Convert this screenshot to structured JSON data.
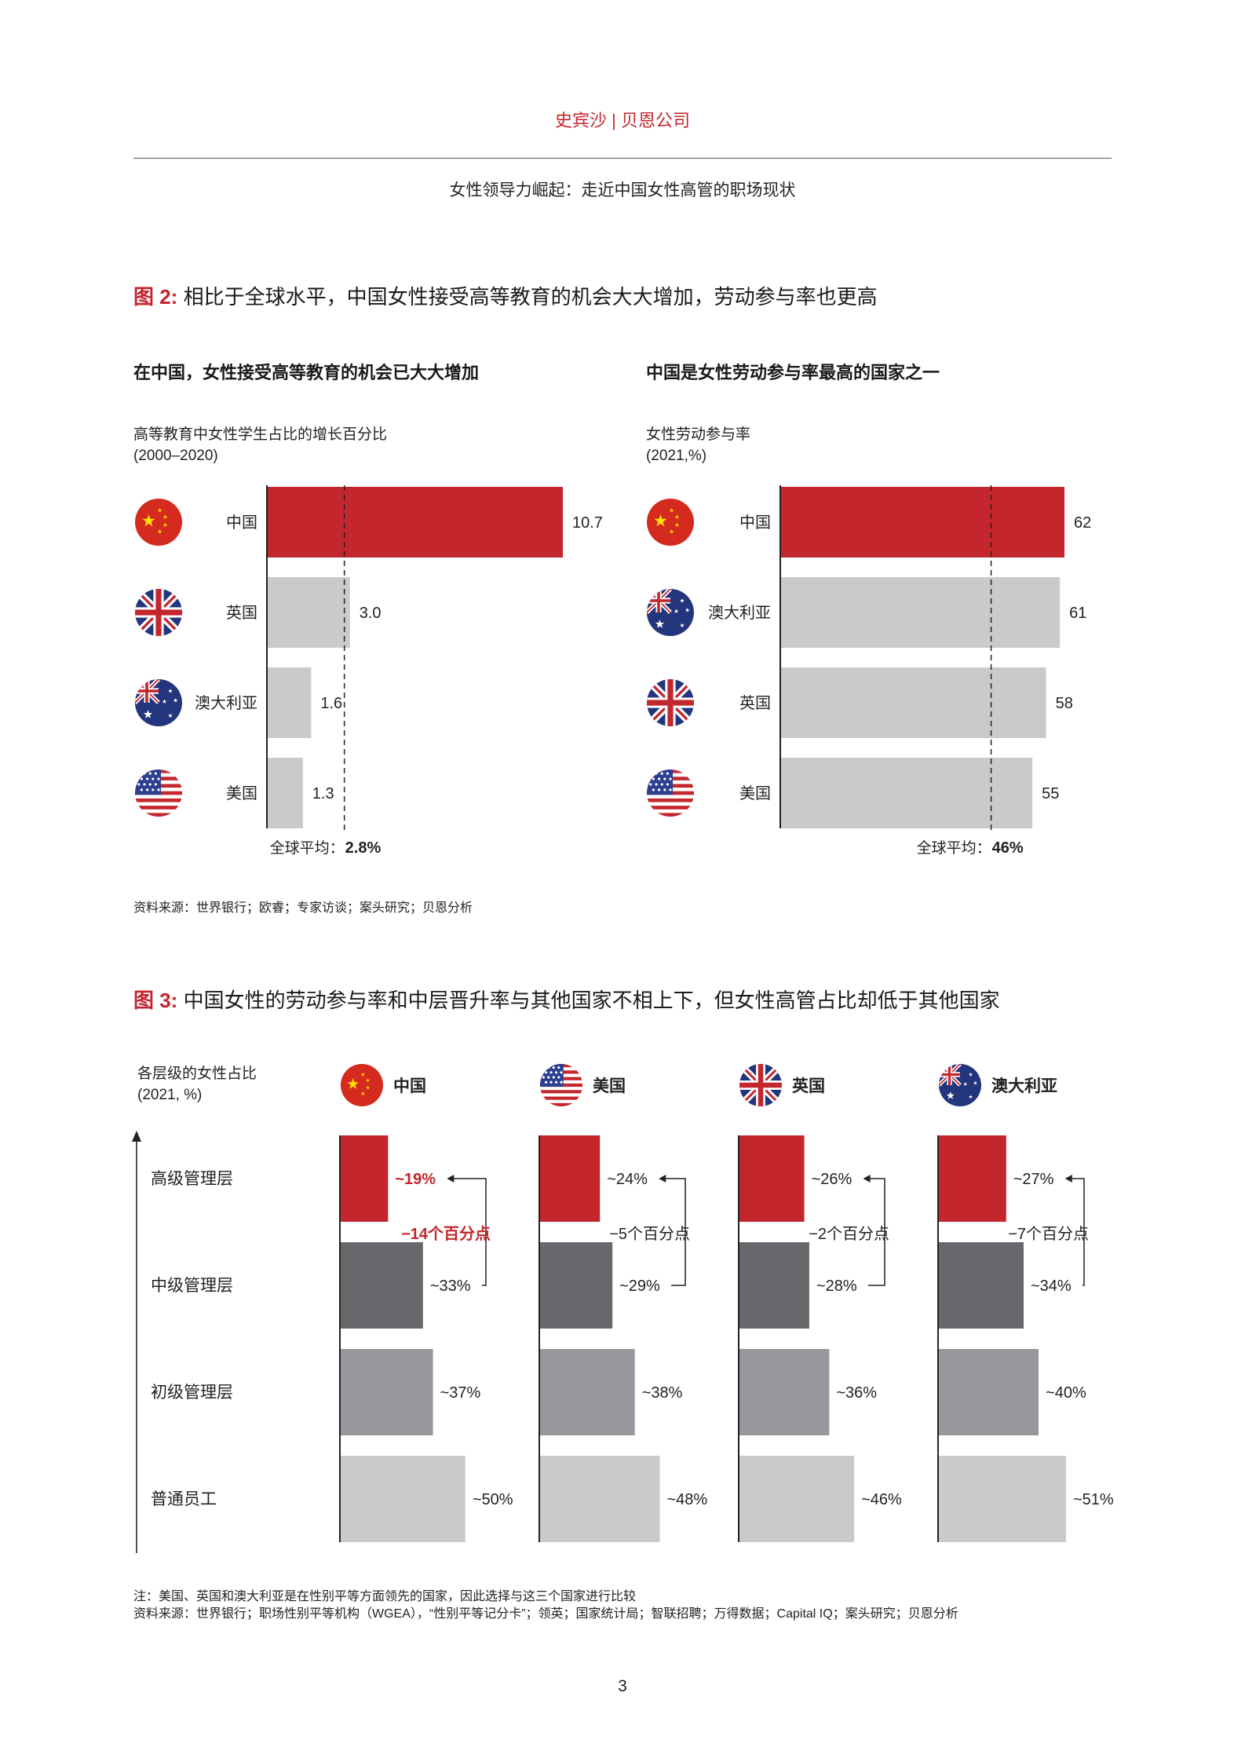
{
  "header": {
    "brand": "史宾沙 | 贝恩公司",
    "report_title": "女性领导力崛起：走近中国女性高管的职场现状"
  },
  "figure2": {
    "label": "图 2:",
    "title": "相比于全球水平，中国女性接受高等教育的机会大大增加，劳动参与率也更高",
    "source": "资料来源：世界银行；欧睿；专家访谈；案头研究；贝恩分析"
  },
  "figure3": {
    "label": "图 3:",
    "title": "中国女性的劳动参与率和中层晋升率与其他国家不相上下，但女性高管占比却低于其他国家",
    "note": "注：美国、英国和澳大利亚是在性别平等方面领先的国家，因此选择与这三个国家进行比较",
    "source": "资料来源：世界银行；职场性别平等机构（WGEA），“性别平等记分卡”；领英；国家统计局；智联招聘；万得数据；Capital IQ；案头研究；贝恩分析"
  },
  "colors": {
    "red": "#c4262e",
    "dark_gray": "#67686b",
    "mid_gray": "#97989b",
    "light_gray": "#c9cacc"
  },
  "chart_data": [
    {
      "type": "bar",
      "orientation": "horizontal",
      "title": "在中国，女性接受高等教育的机会已大大增加",
      "ylabel": [
        "高等教育中女性学生占比的增长百分比",
        "(2000–2020)"
      ],
      "categories": [
        "中国",
        "英国",
        "澳大利亚",
        "美国"
      ],
      "values": [
        10.7,
        3.0,
        1.6,
        1.3
      ],
      "value_labels": [
        "10.7",
        "3.0",
        "1.6",
        "1.3"
      ],
      "flags": [
        "china-flag-icon",
        "uk-flag-icon",
        "australia-flag-icon",
        "usa-flag-icon"
      ],
      "xlim": [
        0,
        10.7
      ],
      "reference_line": {
        "label": "全球平均：",
        "value": 2.8,
        "value_label": "2.8%"
      }
    },
    {
      "type": "bar",
      "orientation": "horizontal",
      "title": "中国是女性劳动参与率最高的国家之一",
      "ylabel": [
        "女性劳动参与率",
        "(2021,%)"
      ],
      "categories": [
        "中国",
        "澳大利亚",
        "英国",
        "美国"
      ],
      "values": [
        62,
        61,
        58,
        55
      ],
      "value_labels": [
        "62",
        "61",
        "58",
        "55"
      ],
      "flags": [
        "china-flag-icon",
        "australia-flag-icon",
        "uk-flag-icon",
        "usa-flag-icon"
      ],
      "xlim": [
        0,
        62
      ],
      "reference_line": {
        "label": "全球平均：",
        "value": 46,
        "value_label": "46%"
      }
    },
    {
      "type": "bar",
      "orientation": "horizontal",
      "ylabel": [
        "各层级的女性占比",
        "(2021, %)"
      ],
      "levels": [
        "高级管理层",
        "中级管理层",
        "初级管理层",
        "普通员工"
      ],
      "xlim": [
        0,
        51
      ],
      "series": [
        {
          "name": "中国",
          "flag": "china-flag-icon",
          "values": [
            19,
            33,
            37,
            50
          ],
          "value_labels": [
            "~19%",
            "~33%",
            "~37%",
            "~50%"
          ],
          "gap_label": "−14个百分点",
          "highlight": true
        },
        {
          "name": "美国",
          "flag": "usa-flag-icon",
          "values": [
            24,
            29,
            38,
            48
          ],
          "value_labels": [
            "~24%",
            "~29%",
            "~38%",
            "~48%"
          ],
          "gap_label": "−5个百分点",
          "highlight": false
        },
        {
          "name": "英国",
          "flag": "uk-flag-icon",
          "values": [
            26,
            28,
            36,
            46
          ],
          "value_labels": [
            "~26%",
            "~28%",
            "~36%",
            "~46%"
          ],
          "gap_label": "−2个百分点",
          "highlight": false
        },
        {
          "name": "澳大利亚",
          "flag": "australia-flag-icon",
          "values": [
            27,
            34,
            40,
            51
          ],
          "value_labels": [
            "~27%",
            "~34%",
            "~40%",
            "~51%"
          ],
          "gap_label": "−7个百分点",
          "highlight": false
        }
      ]
    }
  ],
  "page_number": "3"
}
